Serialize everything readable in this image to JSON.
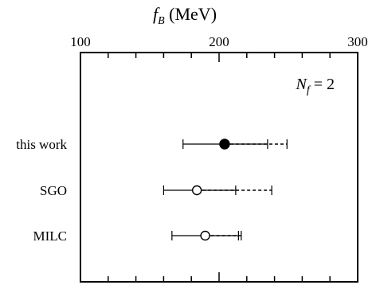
{
  "chart_data": {
    "type": "scatter",
    "title": "f_B (MeV)",
    "title_parts": {
      "main": "f",
      "sub": "B",
      "rest": " (MeV)"
    },
    "xlim": [
      100,
      300
    ],
    "x_tick_labels": [
      "100",
      "200",
      "300"
    ],
    "x_tick_values": [
      100,
      200,
      300
    ],
    "x_minor_step": 20,
    "grid": false,
    "annotation": {
      "main": "N",
      "sub": "f",
      "rest": " = 2"
    },
    "categories": [
      "this work",
      "SGO",
      "MILC"
    ],
    "series": [
      {
        "label": "this work",
        "value": 204,
        "marker": "filled-circle",
        "solid_error": [
          174,
          235
        ],
        "dashed_error": [
          204,
          249
        ]
      },
      {
        "label": "SGO",
        "value": 184,
        "marker": "open-circle",
        "solid_error": [
          160,
          212
        ],
        "dashed_error": [
          184,
          238
        ]
      },
      {
        "label": "MILC",
        "value": 190,
        "marker": "open-circle",
        "solid_error": [
          166,
          214
        ],
        "dashed_error": [
          190,
          216
        ]
      }
    ]
  }
}
